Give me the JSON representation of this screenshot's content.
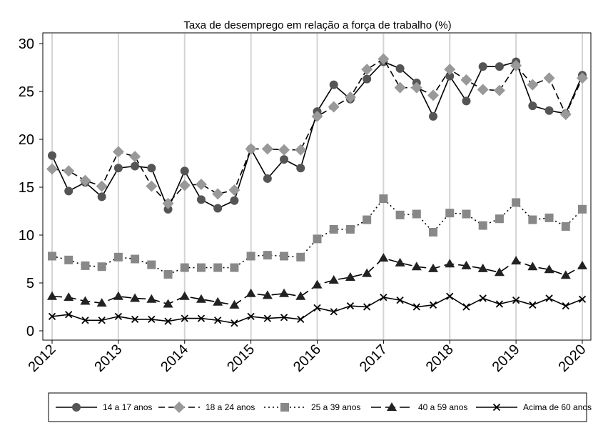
{
  "chart_data": {
    "type": "line",
    "title": "Taxa de desemprego em relação a força de trabalho (%)",
    "xlabel": "",
    "ylabel": "",
    "xlim": [
      2012,
      2020
    ],
    "ylim": [
      0,
      30
    ],
    "x_ticks": [
      2012,
      2013,
      2014,
      2015,
      2016,
      2017,
      2018,
      2019,
      2020
    ],
    "x_tick_labels": [
      "2012",
      "2013",
      "2014",
      "2015",
      "2016",
      "2017",
      "2018",
      "2019",
      "2020"
    ],
    "y_ticks": [
      0,
      5,
      10,
      15,
      20,
      25,
      30
    ],
    "y_tick_labels": [
      "0",
      "5",
      "10",
      "15",
      "20",
      "25",
      "30"
    ],
    "grid": "vertical lines at each year",
    "legend_position": "bottom",
    "x": [
      2012,
      2012.25,
      2012.5,
      2012.75,
      2013,
      2013.25,
      2013.5,
      2013.75,
      2014,
      2014.25,
      2014.5,
      2014.75,
      2015,
      2015.25,
      2015.5,
      2015.75,
      2016,
      2016.25,
      2016.5,
      2016.75,
      2017,
      2017.25,
      2017.5,
      2017.75,
      2018,
      2018.25,
      2018.5,
      2018.75,
      2019,
      2019.25,
      2019.5,
      2019.75,
      2020
    ],
    "series": [
      {
        "name": "14 a 17 anos",
        "marker": "circle",
        "line": "solid",
        "color": "#555555",
        "values": [
          18.3,
          14.6,
          15.5,
          14.0,
          17.0,
          17.2,
          17.0,
          12.7,
          16.7,
          13.7,
          12.8,
          13.6,
          19.0,
          15.9,
          17.9,
          17.0,
          22.9,
          25.7,
          24.2,
          26.3,
          28.1,
          27.4,
          25.9,
          22.4,
          26.6,
          24.0,
          27.6,
          27.6,
          28.1,
          23.5,
          23.0,
          22.7,
          26.7
        ]
      },
      {
        "name": "18 a 24 anos",
        "marker": "diamond",
        "line": "dashed",
        "color": "#999999",
        "values": [
          16.9,
          16.7,
          15.7,
          15.1,
          18.7,
          18.2,
          15.1,
          13.3,
          15.2,
          15.3,
          14.3,
          14.7,
          19.0,
          19.0,
          18.9,
          18.9,
          22.4,
          23.4,
          24.4,
          27.3,
          28.4,
          25.4,
          25.4,
          24.6,
          27.3,
          26.2,
          25.2,
          25.1,
          27.7,
          25.7,
          26.4,
          22.6,
          26.4
        ]
      },
      {
        "name": "25 a 39 anos",
        "marker": "square",
        "line": "dotted",
        "color": "#888888",
        "values": [
          7.8,
          7.4,
          6.8,
          6.7,
          7.7,
          7.5,
          6.9,
          5.9,
          6.6,
          6.6,
          6.6,
          6.6,
          7.8,
          7.9,
          7.8,
          7.7,
          9.6,
          10.6,
          10.6,
          11.6,
          13.8,
          12.1,
          12.2,
          10.3,
          12.3,
          12.2,
          11.0,
          11.7,
          13.4,
          11.6,
          11.8,
          10.9,
          12.7
        ]
      },
      {
        "name": "40 a 59 anos",
        "marker": "triangle",
        "line": "longdash",
        "color": "#222222",
        "values": [
          3.6,
          3.5,
          3.1,
          2.9,
          3.6,
          3.4,
          3.3,
          2.8,
          3.6,
          3.3,
          3.0,
          2.7,
          3.9,
          3.7,
          3.9,
          3.6,
          4.8,
          5.3,
          5.6,
          6.0,
          7.6,
          7.1,
          6.7,
          6.5,
          7.0,
          6.8,
          6.5,
          6.1,
          7.3,
          6.7,
          6.4,
          5.8,
          6.8
        ]
      },
      {
        "name": "Acima de 60 anos",
        "marker": "x",
        "line": "solid",
        "color": "#000000",
        "values": [
          1.5,
          1.7,
          1.1,
          1.1,
          1.5,
          1.2,
          1.2,
          1.0,
          1.3,
          1.3,
          1.1,
          0.8,
          1.5,
          1.3,
          1.4,
          1.2,
          2.4,
          2.0,
          2.6,
          2.5,
          3.5,
          3.2,
          2.5,
          2.7,
          3.6,
          2.5,
          3.4,
          2.8,
          3.2,
          2.7,
          3.4,
          2.6,
          3.3
        ]
      }
    ]
  }
}
